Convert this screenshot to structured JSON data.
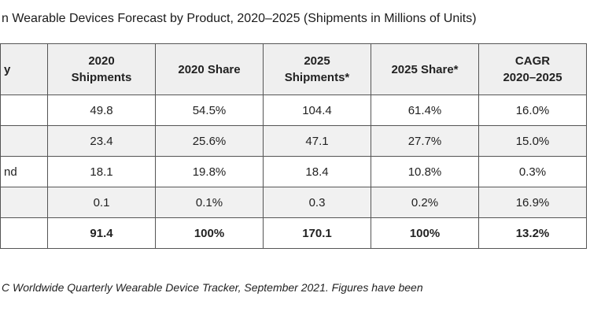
{
  "title": "n Wearable Devices Forecast by Product, 2020–2025 (Shipments in Millions of Units)",
  "table": {
    "headers": [
      "y",
      [
        "2020",
        "Shipments"
      ],
      "2020 Share",
      [
        "2025",
        "Shipments*"
      ],
      "2025 Share*",
      [
        "CAGR",
        "2020–2025"
      ]
    ],
    "rows": [
      [
        "",
        "49.8",
        "54.5%",
        "104.4",
        "61.4%",
        "16.0%"
      ],
      [
        "",
        "23.4",
        "25.6%",
        "47.1",
        "27.7%",
        "15.0%"
      ],
      [
        "nd",
        "18.1",
        "19.8%",
        "18.4",
        "10.8%",
        "0.3%"
      ],
      [
        "",
        "0.1",
        "0.1%",
        "0.3",
        "0.2%",
        "16.9%"
      ],
      [
        "",
        "91.4",
        "100%",
        "170.1",
        "100%",
        "13.2%"
      ]
    ]
  },
  "footnote": "C Worldwide Quarterly Wearable Device Tracker, September 2021. Figures have been"
}
